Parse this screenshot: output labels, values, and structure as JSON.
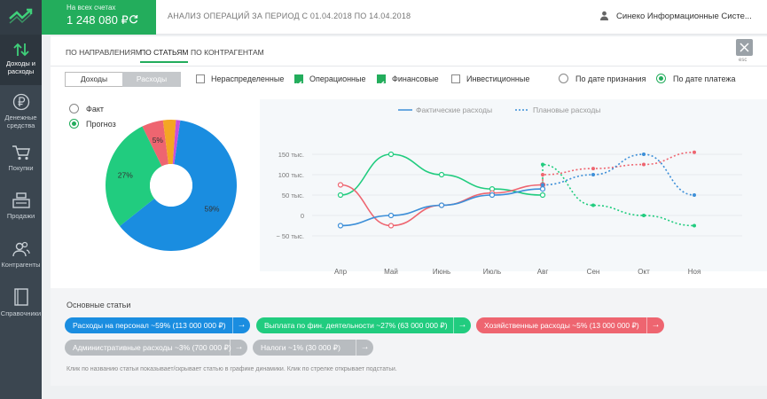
{
  "balance": {
    "caption": "На всех счетах",
    "value": "1 248 080 ₽"
  },
  "header": {
    "title": "АНАЛИЗ ОПЕРАЦИЙ ЗА ПЕРИОД С 01.04.2018 ПО 14.04.2018",
    "user": "Синеко Информационные Систе..."
  },
  "sidebar": {
    "items": [
      {
        "label": "Доходы и расходы",
        "icon": "arrows-updown-icon"
      },
      {
        "label": "Денежные средства",
        "icon": "ruble-icon"
      },
      {
        "label": "Покупки",
        "icon": "cart-icon"
      },
      {
        "label": "Продажи",
        "icon": "cash-register-icon"
      },
      {
        "label": "Контрагенты",
        "icon": "contacts-icon"
      },
      {
        "label": "Справочники",
        "icon": "book-icon"
      }
    ]
  },
  "tabs": [
    "ПО НАПРАВЛЕНИЯМ",
    "ПО СТАТЬЯМ",
    "ПО КОНТРАГЕНТАМ"
  ],
  "close_label": "esc",
  "toggle": {
    "income": "Доходы",
    "expense": "Расходы"
  },
  "filters": [
    {
      "label": "Нераспределенные",
      "checked": false
    },
    {
      "label": "Операционные",
      "checked": true
    },
    {
      "label": "Финансовые",
      "checked": true
    },
    {
      "label": "Инвестиционные",
      "checked": false
    }
  ],
  "date_mode": {
    "recognition": "По дате признания",
    "payment": "По дате платежа"
  },
  "pie_mode": {
    "fact": "Факт",
    "forecast": "Прогноз"
  },
  "chart_data": [
    {
      "type": "pie",
      "donut": true,
      "slices": [
        {
          "label": "59%",
          "value": 59,
          "color": "#1a8de0"
        },
        {
          "label": "27%",
          "value": 27,
          "color": "#21cc7f"
        },
        {
          "label": "5%",
          "value": 5,
          "color": "#ee6570"
        },
        {
          "label": "",
          "value": 3,
          "color": "#f4a623"
        },
        {
          "label": "",
          "value": 1,
          "color": "#c84fdb"
        }
      ]
    },
    {
      "type": "line",
      "legend": [
        "Фактические расходы",
        "Плановые расходы"
      ],
      "categories": [
        "Апр",
        "Май",
        "Июнь",
        "Июль",
        "Авг",
        "Сен",
        "Окт",
        "Ноя"
      ],
      "yticks": [
        "150 тыс.",
        "100 тыс.",
        "50 тыс.",
        "0",
        "− 50 тыс."
      ],
      "ylim": [
        -50,
        150
      ],
      "series": [
        {
          "color": "#21cc7f",
          "actual": [
            50,
            150,
            100,
            65,
            50
          ],
          "planned": [
            125,
            25,
            0,
            -25
          ]
        },
        {
          "color": "#ee6570",
          "actual": [
            75,
            -25,
            25,
            55,
            75
          ],
          "planned": [
            100,
            115,
            125,
            155
          ]
        },
        {
          "color": "#3d8fd8",
          "actual": [
            -25,
            0,
            25,
            50,
            65
          ],
          "planned": [
            75,
            100,
            150,
            50
          ]
        }
      ]
    }
  ],
  "articles": {
    "title": "Основные статьи",
    "items": [
      {
        "label": "Расходы на персонал ~59% (113 000 000 ₽)",
        "color": "#1a8de0"
      },
      {
        "label": "Выплата по фин. деятельности ~27% (63 000 000 ₽)",
        "color": "#21cc7f"
      },
      {
        "label": "Хозяйственные расходы ~5% (13 000 000 ₽)",
        "color": "#ee6570"
      },
      {
        "label": "Административные расходы ~3% (700 000 ₽)",
        "color": "#b8bcc0"
      },
      {
        "label": "Налоги ~1% (30 000 ₽)",
        "color": "#b8bcc0"
      }
    ],
    "arrow": "→",
    "hint": "Клик по названию статьи показывает/скрывает статью в графике динамики. Клик по стрелке открывает подстатьи."
  }
}
